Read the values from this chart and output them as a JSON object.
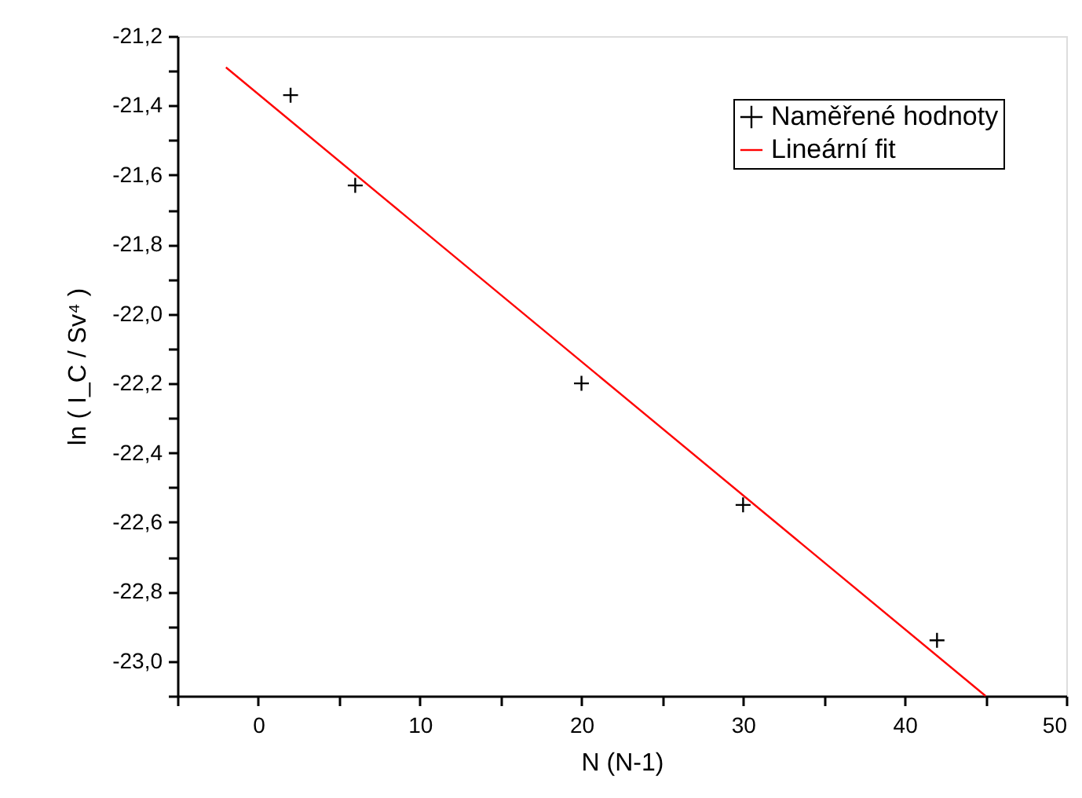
{
  "chart_data": {
    "type": "scatter",
    "xlabel": "N (N-1)",
    "ylabel": "ln ( I_C / Sv⁴ )",
    "xlim": [
      -5,
      50
    ],
    "xticks": [
      {
        "value": -5,
        "label": null
      },
      0,
      {
        "value": 5,
        "label": null
      },
      10,
      {
        "value": 15,
        "label": null
      },
      20,
      {
        "value": 25,
        "label": null
      },
      30,
      {
        "value": 35,
        "label": null
      },
      40,
      {
        "value": 45,
        "label": null
      },
      50
    ],
    "ylim": [
      -23.1,
      -21.2
    ],
    "yticks": [
      {
        "value": -21.2,
        "label": "-21,2"
      },
      {
        "value": -21.3,
        "label": null
      },
      {
        "value": -21.4,
        "label": "-21,4"
      },
      {
        "value": -21.5,
        "label": null
      },
      {
        "value": -21.6,
        "label": "-21,6"
      },
      {
        "value": -21.7,
        "label": null
      },
      {
        "value": -21.8,
        "label": "-21,8"
      },
      {
        "value": -21.9,
        "label": null
      },
      {
        "value": -22.0,
        "label": "-22,0"
      },
      {
        "value": -22.1,
        "label": null
      },
      {
        "value": -22.2,
        "label": "-22,2"
      },
      {
        "value": -22.3,
        "label": null
      },
      {
        "value": -22.4,
        "label": "-22,4"
      },
      {
        "value": -22.5,
        "label": null
      },
      {
        "value": -22.6,
        "label": "-22,6"
      },
      {
        "value": -22.7,
        "label": null
      },
      {
        "value": -22.8,
        "label": "-22,8"
      },
      {
        "value": -22.9,
        "label": null
      },
      {
        "value": -23.0,
        "label": "-23,0"
      },
      {
        "value": -23.1,
        "label": null
      }
    ],
    "grid": false,
    "legend": "top right",
    "series": [
      {
        "name": "Naměřené hodnoty",
        "type": "scatter",
        "marker": "cross",
        "color": "#000000",
        "x": [
          2,
          6,
          20,
          30,
          42
        ],
        "values": [
          -21.37,
          -21.63,
          -22.2,
          -22.55,
          -22.94
        ]
      },
      {
        "name": "Lineární fit",
        "type": "line",
        "line_style": "solid",
        "color": "#ff0000",
        "x": [
          -2,
          45
        ],
        "values": [
          -21.29,
          -23.1
        ]
      }
    ]
  }
}
